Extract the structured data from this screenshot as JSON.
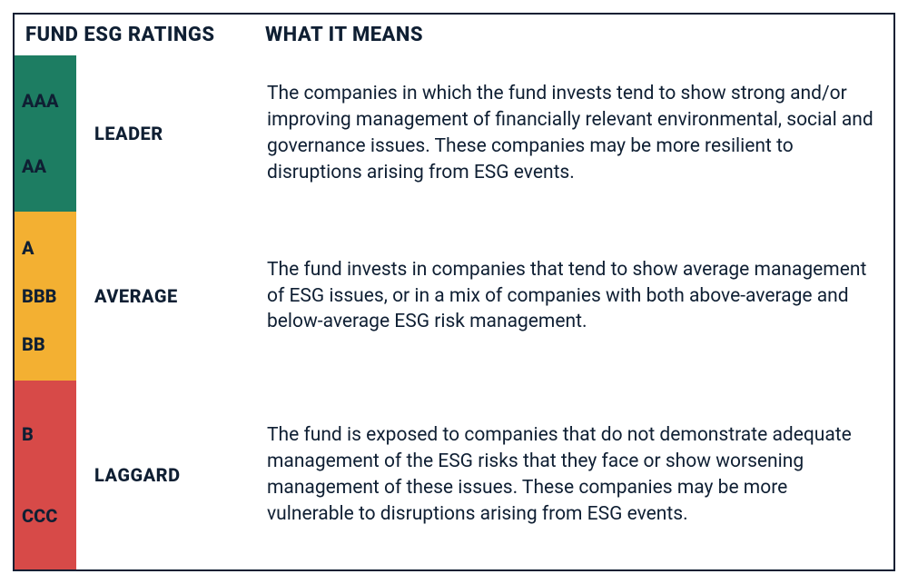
{
  "colors": {
    "border": "#0f1f33",
    "text": "#0f1f33",
    "leader_bg": "#1d7d62",
    "average_bg": "#f3b032",
    "laggard_bg": "#d74a48"
  },
  "headers": {
    "ratings": "FUND ESG RATINGS",
    "meaning": "WHAT IT MEANS"
  },
  "tiers": [
    {
      "key": "leader",
      "label": "LEADER",
      "codes": [
        "AAA",
        "AA"
      ],
      "description": "The companies in which the fund invests tend to show strong and/or improving management of financially relevant environmental, social and governance issues. These companies may be more resilient to disruptions arising from ESG events."
    },
    {
      "key": "average",
      "label": "AVERAGE",
      "codes": [
        "A",
        "BBB",
        "BB"
      ],
      "description": "The fund invests in companies that tend to show average management of ESG issues, or in a mix of companies with both above-average and below-average ESG risk management."
    },
    {
      "key": "laggard",
      "label": "LAGGARD",
      "codes": [
        "B",
        "CCC"
      ],
      "description": "The fund is exposed to companies that do not demonstrate adequate management of the ESG risks that they face or show worsening management of these issues. These companies may be more vulnerable to disruptions arising from ESG events."
    }
  ]
}
